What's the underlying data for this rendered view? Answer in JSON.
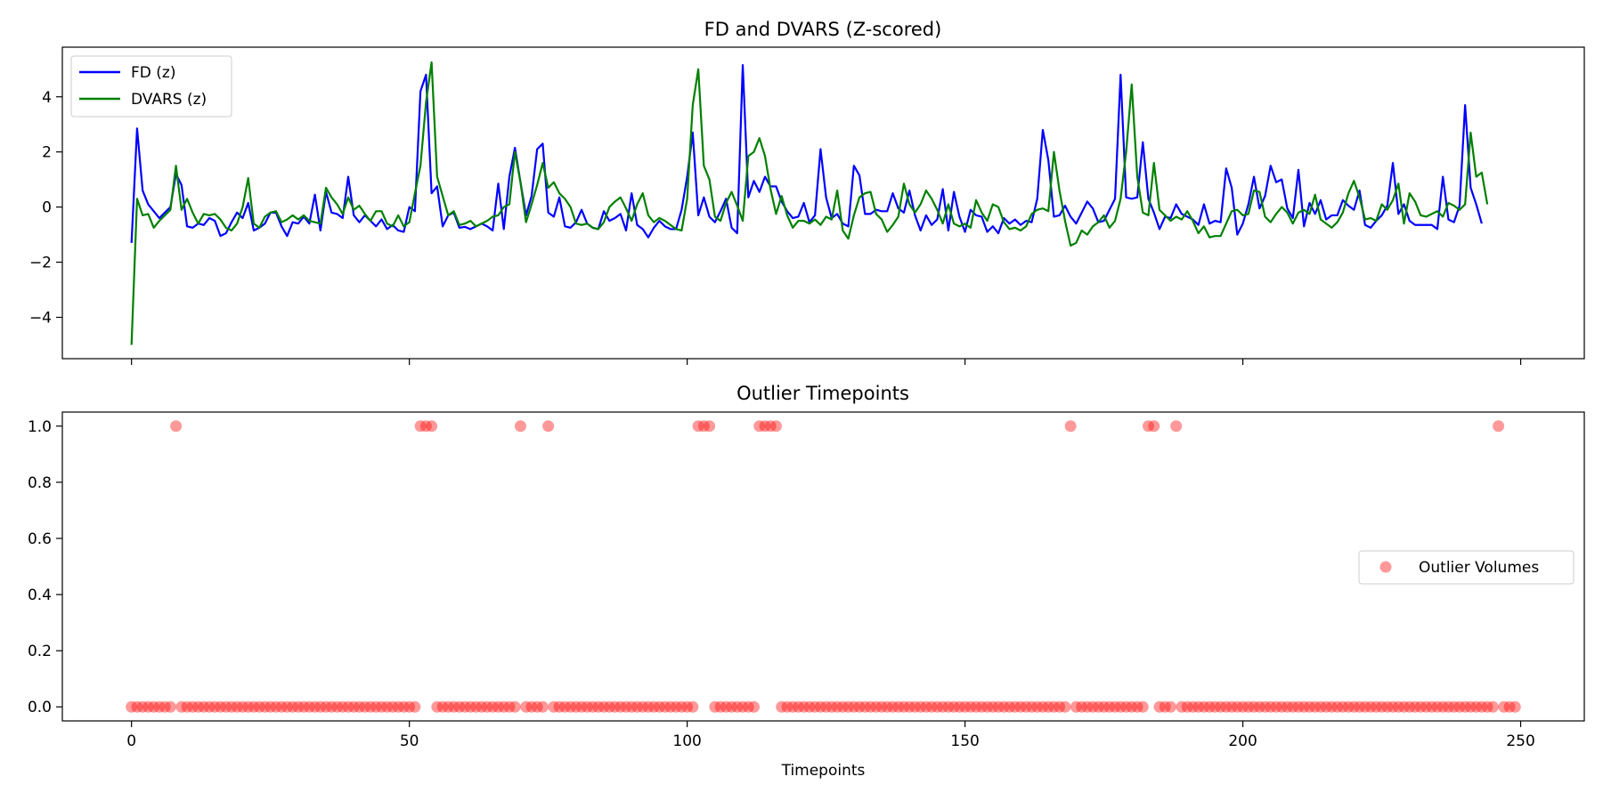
{
  "colors": {
    "fd": "#0000ff",
    "dvars": "#008000",
    "outlier": "#ff0000"
  },
  "chart_data": [
    {
      "type": "line",
      "title": "FD and DVARS (Z-scored)",
      "xlabel": "",
      "ylabel": "",
      "xlim": [
        -12.45,
        261.45
      ],
      "ylim": [
        -5.5,
        5.8
      ],
      "xticks": [
        0,
        50,
        100,
        150,
        200,
        250
      ],
      "yticks": [
        -4,
        -2,
        0,
        2,
        4
      ],
      "ytick_labels": [
        "−4",
        "−2",
        "0",
        "2",
        "4"
      ],
      "legend": "top-left",
      "grid": false,
      "series": [
        {
          "name": "FD (z)",
          "color": "#0000ff",
          "values": [
            -1.3,
            2.85,
            0.6,
            0.1,
            -0.15,
            -0.4,
            -0.2,
            0,
            1.2,
            0.8,
            -0.7,
            -0.75,
            -0.6,
            -0.65,
            -0.4,
            -0.5,
            -1.05,
            -0.95,
            -0.55,
            -0.2,
            -0.4,
            0.15,
            -0.85,
            -0.75,
            -0.6,
            -0.2,
            -0.2,
            -0.7,
            -1.05,
            -0.55,
            -0.6,
            -0.35,
            -0.6,
            0.45,
            -0.85,
            0.55,
            -0.2,
            -0.25,
            -0.4,
            1.1,
            -0.3,
            -0.55,
            -0.3,
            -0.5,
            -0.7,
            -0.45,
            -0.8,
            -0.65,
            -0.85,
            -0.9,
            0,
            -0.15,
            4.2,
            4.8,
            0.5,
            0.75,
            -0.7,
            -0.3,
            -0.2,
            -0.75,
            -0.72,
            -0.8,
            -0.7,
            -0.6,
            -0.7,
            -0.85,
            0.85,
            -0.8,
            1.1,
            2.15,
            0.9,
            -0.3,
            0.4,
            2.1,
            2.3,
            -0.2,
            -0.35,
            0.35,
            -0.7,
            -0.75,
            -0.55,
            -0.1,
            -0.6,
            -0.75,
            -0.8,
            -0.15,
            -0.5,
            -0.4,
            -0.25,
            -0.85,
            0.5,
            -0.65,
            -0.8,
            -1.1,
            -0.75,
            -0.5,
            -0.7,
            -0.8,
            -0.8,
            -0.1,
            1.1,
            2.7,
            -0.3,
            0.35,
            -0.35,
            -0.55,
            -0.15,
            0.3,
            -0.75,
            -0.95,
            5.15,
            0.35,
            0.95,
            0.55,
            1.1,
            0.75,
            0.75,
            0.2,
            -0.15,
            -0.4,
            -0.35,
            0.15,
            -0.55,
            -0.3,
            2.1,
            0.35,
            -0.4,
            -0.25,
            -0.6,
            -0.7,
            1.5,
            1.15,
            -0.25,
            -0.25,
            -0.1,
            -0.15,
            -0.15,
            0.5,
            -0.05,
            -0.2,
            0.6,
            -0.3,
            -0.85,
            -0.3,
            -0.65,
            -0.45,
            0.65,
            -0.85,
            0.55,
            -0.35,
            -0.9,
            -0.1,
            -0.3,
            -0.35,
            -0.9,
            -0.7,
            -0.95,
            -0.4,
            -0.6,
            -0.45,
            -0.65,
            -0.5,
            -0.55,
            0.3,
            2.8,
            1.7,
            -0.35,
            -0.3,
            0.05,
            -0.35,
            -0.6,
            -0.2,
            0.2,
            -0.05,
            -0.55,
            -0.5,
            -0.1,
            0.3,
            4.8,
            0.35,
            0.3,
            0.35,
            2.35,
            0.3,
            -0.2,
            -0.8,
            -0.35,
            -0.4,
            0.1,
            -0.25,
            -0.35,
            -0.45,
            -0.65,
            0.1,
            -0.6,
            -0.5,
            -0.55,
            1.4,
            0.7,
            -1.0,
            -0.6,
            0.1,
            1.1,
            -0.05,
            0.4,
            1.5,
            0.9,
            1.0,
            -0.05,
            -0.4,
            1.35,
            -0.7,
            0.15,
            -0.25,
            0.25,
            -0.45,
            -0.3,
            -0.3,
            0.25,
            0.05,
            -0.1,
            0.6,
            -0.65,
            -0.75,
            -0.5,
            -0.3,
            0.05,
            1.6,
            -0.25,
            0.1,
            -0.5,
            -0.65,
            -0.65,
            -0.65,
            -0.65,
            -0.8,
            1.1,
            -0.45,
            -0.55,
            0.05,
            3.7,
            0.7,
            0.1,
            -0.6
          ]
        },
        {
          "name": "DVARS (z)",
          "color": "#008000",
          "values": [
            -5.0,
            0.3,
            -0.3,
            -0.25,
            -0.75,
            -0.5,
            -0.3,
            -0.1,
            1.5,
            -0.1,
            0.3,
            -0.2,
            -0.6,
            -0.25,
            -0.3,
            -0.25,
            -0.45,
            -0.75,
            -0.85,
            -0.6,
            0,
            1.05,
            -0.6,
            -0.75,
            -0.35,
            -0.2,
            -0.15,
            -0.55,
            -0.45,
            -0.3,
            -0.45,
            -0.3,
            -0.5,
            -0.55,
            -0.6,
            0.7,
            0.35,
            0.1,
            -0.25,
            0.35,
            -0.1,
            0.05,
            -0.25,
            -0.5,
            -0.15,
            -0.15,
            -0.6,
            -0.7,
            -0.3,
            -0.7,
            -0.55,
            0.5,
            1.5,
            3.8,
            5.25,
            1.1,
            0.4,
            -0.3,
            -0.15,
            -0.65,
            -0.6,
            -0.5,
            -0.7,
            -0.6,
            -0.5,
            -0.35,
            -0.3,
            0,
            0.1,
            2.0,
            0.9,
            -0.55,
            0.1,
            0.8,
            1.6,
            0.7,
            0.9,
            0.5,
            0.3,
            0,
            -0.6,
            -0.65,
            -0.6,
            -0.75,
            -0.8,
            -0.55,
            0,
            0.2,
            0.35,
            -0.05,
            -0.5,
            0.1,
            0.5,
            -0.3,
            -0.55,
            -0.4,
            -0.5,
            -0.65,
            -0.8,
            -0.85,
            0.3,
            3.7,
            5.0,
            1.5,
            1.0,
            -0.35,
            -0.5,
            0.15,
            0.55,
            0.05,
            -0.5,
            1.85,
            2.0,
            2.5,
            1.85,
            0.65,
            -0.25,
            0.4,
            -0.3,
            -0.75,
            -0.5,
            -0.5,
            -0.6,
            -0.45,
            -0.65,
            -0.35,
            -0.45,
            0.6,
            -0.85,
            -1.15,
            -0.3,
            0.35,
            0.5,
            0.55,
            -0.25,
            -0.45,
            -0.9,
            -0.65,
            -0.35,
            0.85,
            0.1,
            -0.2,
            0.1,
            0.6,
            0.3,
            -0.1,
            -0.6,
            0.1,
            -0.6,
            -0.7,
            -0.6,
            -0.75,
            0.25,
            -0.2,
            -0.5,
            0.1,
            0,
            -0.55,
            -0.8,
            -0.75,
            -0.85,
            -0.7,
            -0.25,
            -0.1,
            -0.05,
            -0.15,
            2.0,
            0.6,
            -0.5,
            -1.4,
            -1.3,
            -0.85,
            -1.0,
            -0.7,
            -0.55,
            -0.3,
            -0.75,
            -0.5,
            0.3,
            2.0,
            4.45,
            1.1,
            -0.2,
            -0.3,
            1.6,
            -0.1,
            -0.3,
            -0.5,
            -0.35,
            -0.45,
            -0.15,
            -0.5,
            -0.95,
            -0.7,
            -1.1,
            -1.05,
            -1.05,
            -0.6,
            -0.15,
            -0.1,
            -0.3,
            -0.25,
            0.6,
            0.55,
            -0.35,
            -0.55,
            -0.25,
            0,
            -0.2,
            -0.6,
            -0.2,
            -0.1,
            -0.25,
            0.45,
            -0.45,
            -0.6,
            -0.75,
            -0.55,
            -0.2,
            0.5,
            0.95,
            0.35,
            -0.45,
            -0.4,
            -0.5,
            0.1,
            -0.1,
            0.25,
            0.85,
            -0.6,
            0.5,
            0.2,
            -0.3,
            -0.35,
            -0.25,
            -0.15,
            -0.35,
            0.15,
            0.05,
            -0.1,
            0.1,
            2.7,
            1.1,
            1.25,
            0.1
          ]
        }
      ]
    },
    {
      "type": "scatter",
      "title": "Outlier Timepoints",
      "xlabel": "Timepoints",
      "ylabel": "",
      "xlim": [
        -12.45,
        261.45
      ],
      "ylim": [
        -0.05,
        1.05
      ],
      "xticks": [
        0,
        50,
        100,
        150,
        200,
        250
      ],
      "yticks": [
        0.0,
        0.2,
        0.4,
        0.6,
        0.8,
        1.0
      ],
      "ytick_labels": [
        "0.0",
        "0.2",
        "0.4",
        "0.6",
        "0.8",
        "1.0"
      ],
      "legend": "center-right",
      "grid": false,
      "series": [
        {
          "name": "Outlier Volumes",
          "color": "#ff0000",
          "outlier_indices": [
            8,
            52,
            53,
            54,
            70,
            75,
            102,
            103,
            104,
            113,
            114,
            115,
            116,
            169,
            183,
            184,
            188,
            246
          ],
          "n_points": 250
        }
      ]
    }
  ]
}
